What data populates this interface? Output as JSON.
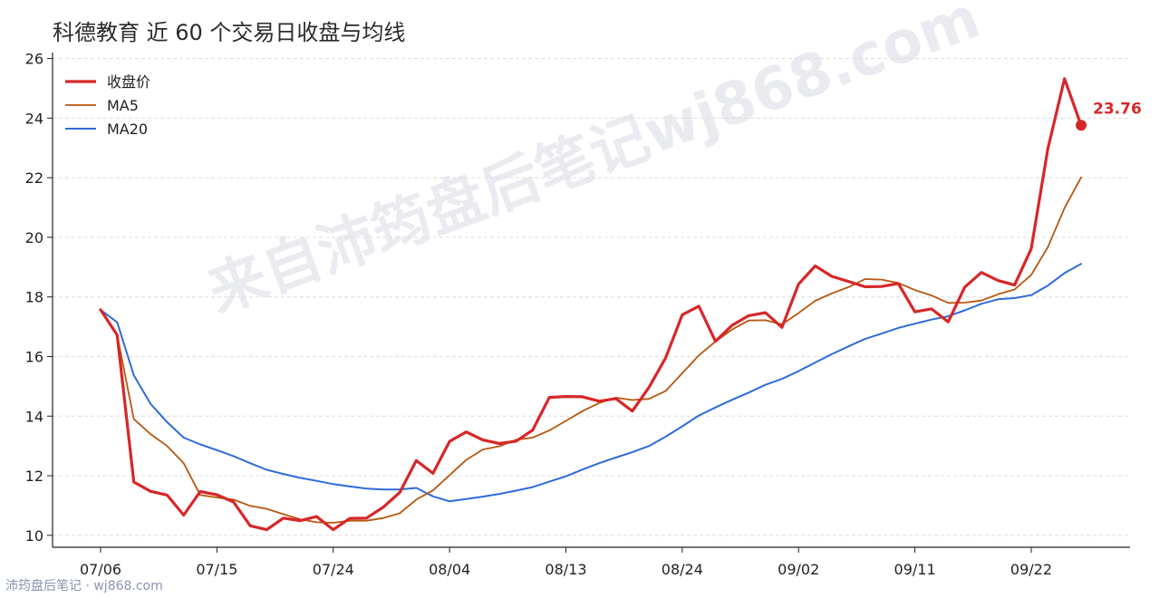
{
  "footer_text": "沛筠盘后笔记 · wj868.com",
  "watermark": "来自沛筠盘后笔记wj868.com",
  "colors": {
    "close": "#d62728",
    "ma5": "#b8560e",
    "ma20": "#2f6bd8",
    "grid": "#dcdcdc",
    "axis": "#222222"
  },
  "chart_data": {
    "type": "line",
    "title": "科德教育 近 60 个交易日收盘与均线",
    "xlabel": "",
    "ylabel": "",
    "ylim": [
      9.6,
      26.2
    ],
    "yticks": [
      10,
      12,
      14,
      16,
      18,
      20,
      22,
      24,
      26
    ],
    "xtick_labels": [
      "07/06",
      "07/15",
      "07/24",
      "08/04",
      "08/13",
      "08/24",
      "09/02",
      "09/11",
      "09/22"
    ],
    "xtick_indices": [
      0,
      7,
      14,
      21,
      28,
      35,
      42,
      49,
      56
    ],
    "grid": "horizontal dashed",
    "legend_position": "top-left",
    "x_count": 60,
    "series": [
      {
        "name": "收盘价",
        "values": [
          17.57,
          16.72,
          11.79,
          11.48,
          11.35,
          10.68,
          11.47,
          11.36,
          11.12,
          10.32,
          10.19,
          10.58,
          10.49,
          10.63,
          10.19,
          10.57,
          10.58,
          10.94,
          11.44,
          12.51,
          12.08,
          13.15,
          13.47,
          13.2,
          13.08,
          13.16,
          13.53,
          14.63,
          14.66,
          14.65,
          14.5,
          14.59,
          14.17,
          14.97,
          15.95,
          17.4,
          17.69,
          16.51,
          17.05,
          17.37,
          17.47,
          16.98,
          18.43,
          19.04,
          18.69,
          18.52,
          18.34,
          18.35,
          18.45,
          17.5,
          17.6,
          17.16,
          18.33,
          18.82,
          18.55,
          18.4,
          19.62,
          22.97,
          25.32,
          23.76
        ]
      },
      {
        "name": "MA5",
        "values": [
          17.57,
          16.72,
          13.9,
          13.4,
          13.0,
          12.42,
          11.35,
          11.27,
          11.2,
          10.99,
          10.89,
          10.71,
          10.54,
          10.44,
          10.42,
          10.49,
          10.49,
          10.58,
          10.74,
          11.2,
          11.51,
          12.02,
          12.53,
          12.88,
          12.99,
          13.21,
          13.28,
          13.52,
          13.84,
          14.17,
          14.44,
          14.62,
          14.54,
          14.58,
          14.84,
          15.44,
          16.04,
          16.5,
          16.91,
          17.21,
          17.22,
          17.08,
          17.46,
          17.87,
          18.12,
          18.33,
          18.6,
          18.58,
          18.47,
          18.23,
          18.05,
          17.8,
          17.81,
          17.88,
          18.09,
          18.25,
          18.74,
          19.67,
          20.98,
          22.01
        ]
      },
      {
        "name": "MA20",
        "values": [
          17.57,
          17.15,
          15.37,
          14.42,
          13.8,
          13.28,
          13.05,
          12.86,
          12.66,
          12.42,
          12.2,
          12.06,
          11.93,
          11.83,
          11.72,
          11.64,
          11.57,
          11.54,
          11.54,
          11.59,
          11.31,
          11.14,
          11.22,
          11.3,
          11.39,
          11.5,
          11.62,
          11.8,
          11.98,
          12.21,
          12.42,
          12.61,
          12.79,
          13.0,
          13.31,
          13.66,
          14.02,
          14.29,
          14.55,
          14.79,
          15.05,
          15.25,
          15.51,
          15.8,
          16.08,
          16.34,
          16.59,
          16.77,
          16.96,
          17.1,
          17.24,
          17.35,
          17.55,
          17.77,
          17.92,
          17.96,
          18.06,
          18.38,
          18.8,
          19.11
        ]
      }
    ],
    "last_value_label": "23.76"
  }
}
